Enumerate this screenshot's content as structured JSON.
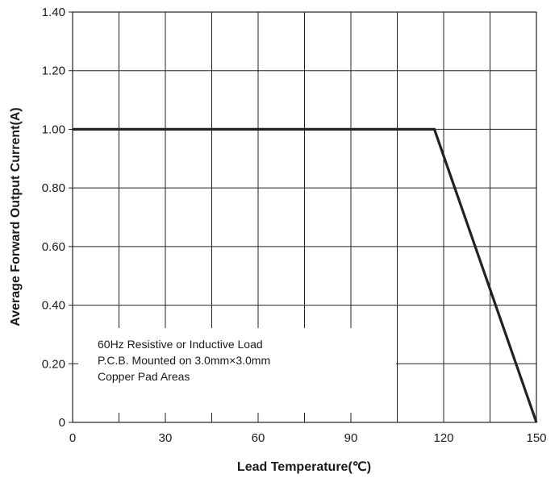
{
  "chart_data": {
    "type": "line",
    "xlabel": "Lead Temperature(℃)",
    "ylabel": "Average Forward Output Current(A)",
    "xlim": [
      0,
      150
    ],
    "ylim": [
      0,
      1.4
    ],
    "x_ticks": [
      "0",
      "30",
      "60",
      "90",
      "120",
      "150"
    ],
    "x_tick_values": [
      0,
      30,
      60,
      90,
      120,
      150
    ],
    "y_ticks": [
      "0",
      "0.20",
      "0.40",
      "0.60",
      "0.80",
      "1.00",
      "1.20",
      "1.40"
    ],
    "y_tick_values": [
      0,
      0.2,
      0.4,
      0.6,
      0.8,
      1.0,
      1.2,
      1.4
    ],
    "grid": true,
    "x_grid_step": 15,
    "series": [
      {
        "x": [
          0,
          117,
          150
        ],
        "y": [
          1.0,
          1.0,
          0.0
        ]
      }
    ],
    "annotations": [
      "60Hz Resistive or Inductive Load",
      "P.C.B. Mounted on 3.0mm×3.0mm",
      "Copper Pad Areas"
    ],
    "colors": {
      "line": "#222222",
      "grid": "#222222",
      "background": "#ffffff"
    }
  }
}
